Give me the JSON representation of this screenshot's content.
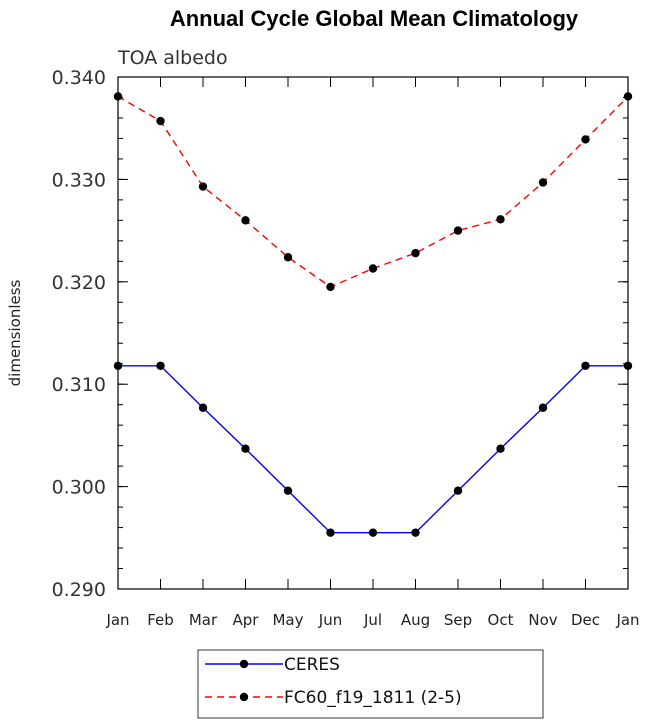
{
  "chart_data": {
    "type": "line",
    "title": "Annual Cycle Global Mean Climatology",
    "subtitle": "TOA albedo",
    "ylabel": "dimensionless",
    "xlabel": "",
    "categories": [
      "Jan",
      "Feb",
      "Mar",
      "Apr",
      "May",
      "Jun",
      "Jul",
      "Aug",
      "Sep",
      "Oct",
      "Nov",
      "Dec",
      "Jan"
    ],
    "ylim": [
      0.29,
      0.34
    ],
    "yticks": [
      "0.290",
      "0.300",
      "0.310",
      "0.320",
      "0.330",
      "0.340"
    ],
    "grid": false,
    "legend_position": "bottom",
    "series": [
      {
        "name": "CERES",
        "color": "#0000ff",
        "dash": "solid",
        "marker": "circle",
        "values": [
          0.3118,
          0.3118,
          0.3077,
          0.3037,
          0.2996,
          0.2955,
          0.2955,
          0.2955,
          0.2996,
          0.3037,
          0.3077,
          0.3118,
          0.3118
        ]
      },
      {
        "name": "FC60_f19_1811 (2-5)",
        "color": "#ff0000",
        "dash": "dashed",
        "marker": "circle",
        "values": [
          0.3381,
          0.3357,
          0.3293,
          0.326,
          0.3224,
          0.3195,
          0.3213,
          0.3228,
          0.325,
          0.3261,
          0.3297,
          0.3339,
          0.3381
        ]
      }
    ]
  }
}
